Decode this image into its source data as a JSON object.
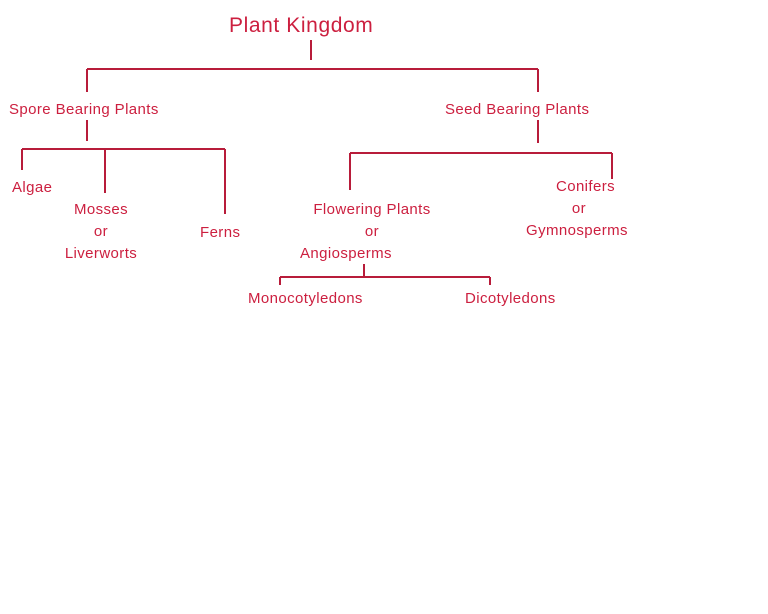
{
  "diagram": {
    "root": "Plant Kingdom",
    "spore_bearing": "Spore Bearing Plants",
    "seed_bearing": "Seed Bearing Plants",
    "algae": "Algae",
    "mosses": {
      "line1": "Mosses",
      "line2": "or",
      "line3": "Liverworts"
    },
    "ferns": "Ferns",
    "flowering": {
      "line1": "Flowering Plants",
      "line2": "or",
      "line3": "Angiosperms"
    },
    "conifers": {
      "line1": "Conifers",
      "line2": "or",
      "line3": "Gymnosperms"
    },
    "monocots": "Monocotyledons",
    "dicots": "Dicotyledons",
    "line_color": "#b81c3a",
    "text_color": "#cc1f3f"
  }
}
